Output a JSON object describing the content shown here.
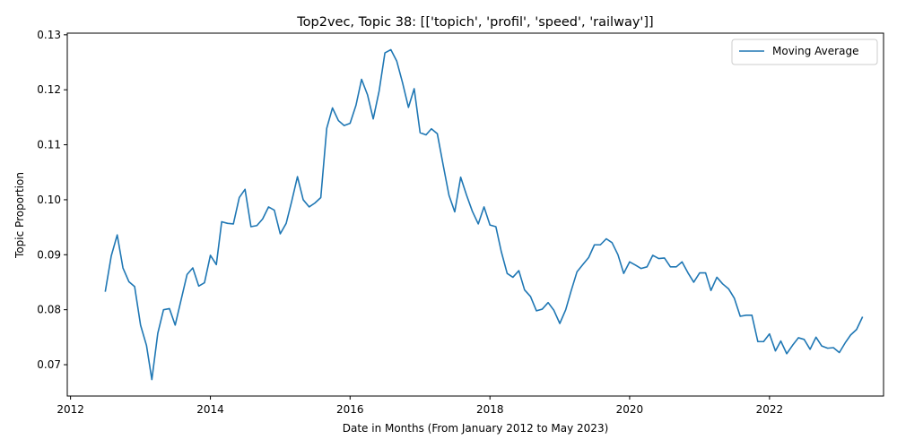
{
  "chart_data": {
    "type": "line",
    "title": "Top2vec, Topic 38: [['topich', 'profil', 'speed', 'railway']]",
    "xlabel": "Date in Months (From January 2012 to May 2023)",
    "ylabel": "Topic Proportion",
    "xlim": [
      "2011-12-15",
      "2023-08-20"
    ],
    "ylim": [
      0.0643,
      0.1303
    ],
    "xticks": [
      {
        "value": "2012-01-01",
        "label": "2012"
      },
      {
        "value": "2014-01-01",
        "label": "2014"
      },
      {
        "value": "2016-01-01",
        "label": "2016"
      },
      {
        "value": "2018-01-01",
        "label": "2018"
      },
      {
        "value": "2020-01-01",
        "label": "2020"
      },
      {
        "value": "2022-01-01",
        "label": "2022"
      }
    ],
    "yticks": [
      {
        "value": 0.07,
        "label": "0.07"
      },
      {
        "value": 0.08,
        "label": "0.08"
      },
      {
        "value": 0.09,
        "label": "0.09"
      },
      {
        "value": 0.1,
        "label": "0.10"
      },
      {
        "value": 0.11,
        "label": "0.11"
      },
      {
        "value": 0.12,
        "label": "0.12"
      },
      {
        "value": 0.13,
        "label": "0.13"
      }
    ],
    "grid": false,
    "legend": {
      "position": "top-right",
      "entries": [
        "Moving Average"
      ]
    },
    "series": [
      {
        "name": "Moving Average",
        "color": "#1f77b4",
        "x": [
          "2012-07",
          "2012-08",
          "2012-09",
          "2012-10",
          "2012-11",
          "2012-12",
          "2013-01",
          "2013-02",
          "2013-03",
          "2013-04",
          "2013-05",
          "2013-06",
          "2013-07",
          "2013-08",
          "2013-09",
          "2013-10",
          "2013-11",
          "2013-12",
          "2014-01",
          "2014-02",
          "2014-03",
          "2014-04",
          "2014-05",
          "2014-06",
          "2014-07",
          "2014-08",
          "2014-09",
          "2014-10",
          "2014-11",
          "2014-12",
          "2015-01",
          "2015-02",
          "2015-03",
          "2015-04",
          "2015-05",
          "2015-06",
          "2015-07",
          "2015-08",
          "2015-09",
          "2015-10",
          "2015-11",
          "2015-12",
          "2016-01",
          "2016-02",
          "2016-03",
          "2016-04",
          "2016-05",
          "2016-06",
          "2016-07",
          "2016-08",
          "2016-09",
          "2016-10",
          "2016-11",
          "2016-12",
          "2017-01",
          "2017-02",
          "2017-03",
          "2017-04",
          "2017-05",
          "2017-06",
          "2017-07",
          "2017-08",
          "2017-09",
          "2017-10",
          "2017-11",
          "2017-12",
          "2018-01",
          "2018-02",
          "2018-03",
          "2018-04",
          "2018-05",
          "2018-06",
          "2018-07",
          "2018-08",
          "2018-09",
          "2018-10",
          "2018-11",
          "2018-12",
          "2019-01",
          "2019-02",
          "2019-03",
          "2019-04",
          "2019-05",
          "2019-06",
          "2019-07",
          "2019-08",
          "2019-09",
          "2019-10",
          "2019-11",
          "2019-12",
          "2020-01",
          "2020-02",
          "2020-03",
          "2020-04",
          "2020-05",
          "2020-06",
          "2020-07",
          "2020-08",
          "2020-09",
          "2020-10",
          "2020-11",
          "2020-12",
          "2021-01",
          "2021-02",
          "2021-03",
          "2021-04",
          "2021-05",
          "2021-06",
          "2021-07",
          "2021-08",
          "2021-09",
          "2021-10",
          "2021-11",
          "2021-12",
          "2022-01",
          "2022-02",
          "2022-03",
          "2022-04",
          "2022-05",
          "2022-06",
          "2022-07",
          "2022-08",
          "2022-09",
          "2022-10",
          "2022-11",
          "2022-12",
          "2023-01",
          "2023-02",
          "2023-03",
          "2023-04",
          "2023-05"
        ],
        "values": [
          0.0834,
          0.0898,
          0.0936,
          0.0876,
          0.0851,
          0.0842,
          0.0772,
          0.0735,
          0.0673,
          0.0757,
          0.08,
          0.0802,
          0.0772,
          0.0818,
          0.0864,
          0.0876,
          0.0843,
          0.0849,
          0.0899,
          0.0882,
          0.096,
          0.0957,
          0.0956,
          0.1004,
          0.1019,
          0.0951,
          0.0953,
          0.0965,
          0.0987,
          0.0981,
          0.0938,
          0.0957,
          0.0996,
          0.1042,
          0.1,
          0.0987,
          0.0994,
          0.1004,
          0.113,
          0.1167,
          0.1144,
          0.1135,
          0.1139,
          0.1172,
          0.1219,
          0.1191,
          0.1147,
          0.1198,
          0.1267,
          0.1273,
          0.1252,
          0.1213,
          0.1168,
          0.1202,
          0.1122,
          0.1118,
          0.1129,
          0.112,
          0.1064,
          0.1008,
          0.0978,
          0.1041,
          0.1008,
          0.0979,
          0.0956,
          0.0987,
          0.0954,
          0.0951,
          0.0906,
          0.0866,
          0.0859,
          0.0871,
          0.0836,
          0.0824,
          0.0798,
          0.0801,
          0.0813,
          0.0799,
          0.0775,
          0.08,
          0.0834,
          0.0869,
          0.0882,
          0.0895,
          0.0918,
          0.0918,
          0.0929,
          0.0922,
          0.09,
          0.0866,
          0.0887,
          0.0881,
          0.0875,
          0.0878,
          0.0899,
          0.0893,
          0.0894,
          0.0878,
          0.0878,
          0.0887,
          0.0867,
          0.085,
          0.0867,
          0.0867,
          0.0835,
          0.0859,
          0.0847,
          0.0838,
          0.0821,
          0.0788,
          0.079,
          0.079,
          0.0742,
          0.0742,
          0.0756,
          0.0725,
          0.0743,
          0.072,
          0.0735,
          0.0749,
          0.0746,
          0.0728,
          0.075,
          0.0734,
          0.073,
          0.0731,
          0.0722,
          0.074,
          0.0754,
          0.0764,
          0.0786
        ]
      }
    ]
  }
}
